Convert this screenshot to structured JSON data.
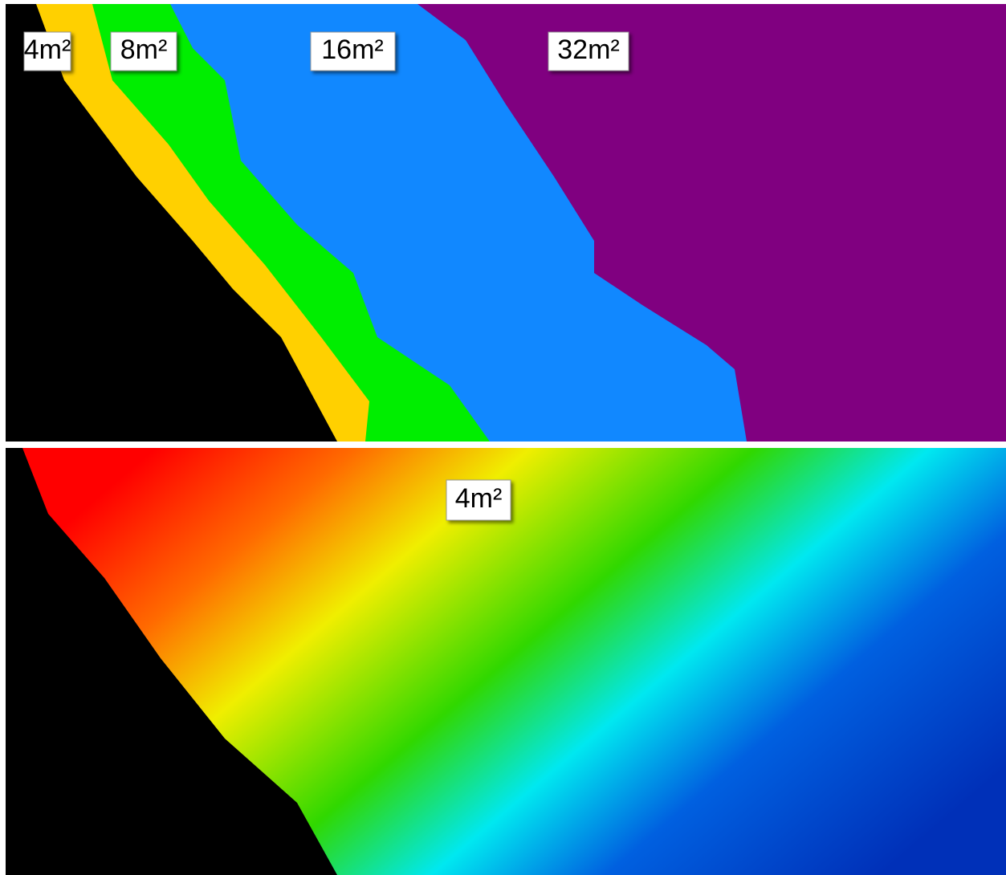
{
  "panels": [
    {
      "labels": [
        "4m²",
        "8m²",
        "16m²",
        "32m²"
      ]
    },
    {
      "labels": [
        "4m²"
      ]
    }
  ]
}
